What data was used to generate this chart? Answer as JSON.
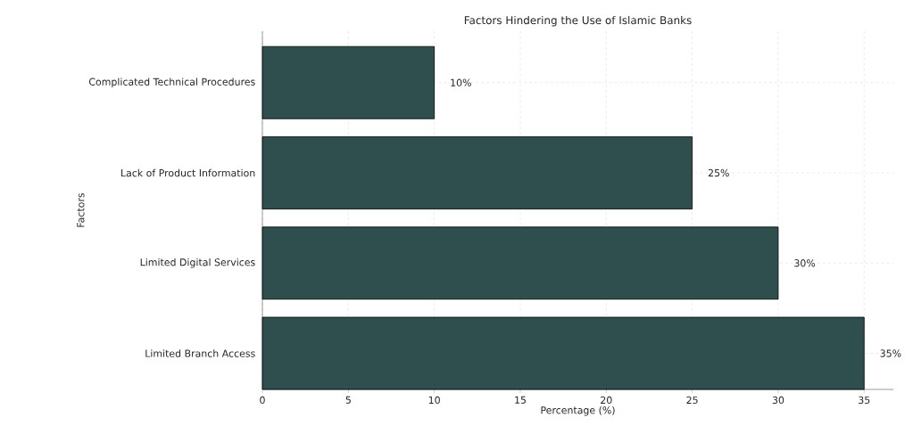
{
  "chart_data": {
    "type": "bar",
    "orientation": "horizontal",
    "title": "Factors Hindering the Use of Islamic Banks",
    "xlabel": "Percentage (%)",
    "ylabel": "Factors",
    "categories": [
      "Complicated Technical Procedures",
      "Lack of Product Information",
      "Limited Digital Services",
      "Limited Branch Access"
    ],
    "values": [
      10,
      25,
      30,
      35
    ],
    "value_labels": [
      "10%",
      "25%",
      "30%",
      "35%"
    ],
    "color": "#2f4f4f",
    "xlim": [
      0,
      36.7
    ],
    "xticks": [
      0,
      5,
      10,
      15,
      20,
      25,
      30,
      35
    ],
    "grid": true
  }
}
